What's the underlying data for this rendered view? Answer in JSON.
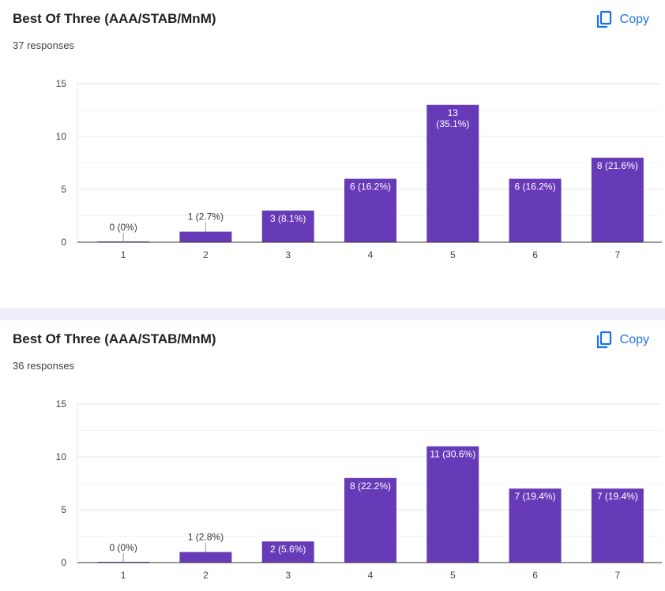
{
  "copy_label": "Copy",
  "colors": {
    "bar": "#673ab7",
    "accent": "#1a73e8",
    "page_bg": "#f0ebf8"
  },
  "icons": {
    "copy": "copy-icon"
  },
  "charts": [
    {
      "title": "Best Of Three (AAA/STAB/MnM)",
      "responses": "37 responses"
    },
    {
      "title": "Best Of Three (AAA/STAB/MnM)",
      "responses": "36 responses"
    }
  ],
  "chart_data": [
    {
      "type": "bar",
      "title": "Best Of Three (AAA/STAB/MnM)",
      "categories": [
        "1",
        "2",
        "3",
        "4",
        "5",
        "6",
        "7"
      ],
      "values": [
        0,
        1,
        3,
        6,
        13,
        6,
        8
      ],
      "labels": [
        "0 (0%)",
        "1 (2.7%)",
        "3 (8.1%)",
        "6 (16.2%)",
        "13 (35.1%)",
        "6 (16.2%)",
        "8 (21.6%)"
      ],
      "yticks": [
        0,
        5,
        10,
        15
      ],
      "ylim": [
        0,
        15
      ],
      "grid": true
    },
    {
      "type": "bar",
      "title": "Best Of Three (AAA/STAB/MnM)",
      "categories": [
        "1",
        "2",
        "3",
        "4",
        "5",
        "6",
        "7"
      ],
      "values": [
        0,
        1,
        2,
        8,
        11,
        7,
        7
      ],
      "labels": [
        "0 (0%)",
        "1 (2.8%)",
        "2 (5.6%)",
        "8 (22.2%)",
        "11 (30.6%)",
        "7 (19.4%)",
        "7 (19.4%)"
      ],
      "yticks": [
        0,
        5,
        10,
        15
      ],
      "ylim": [
        0,
        15
      ],
      "grid": true
    }
  ]
}
